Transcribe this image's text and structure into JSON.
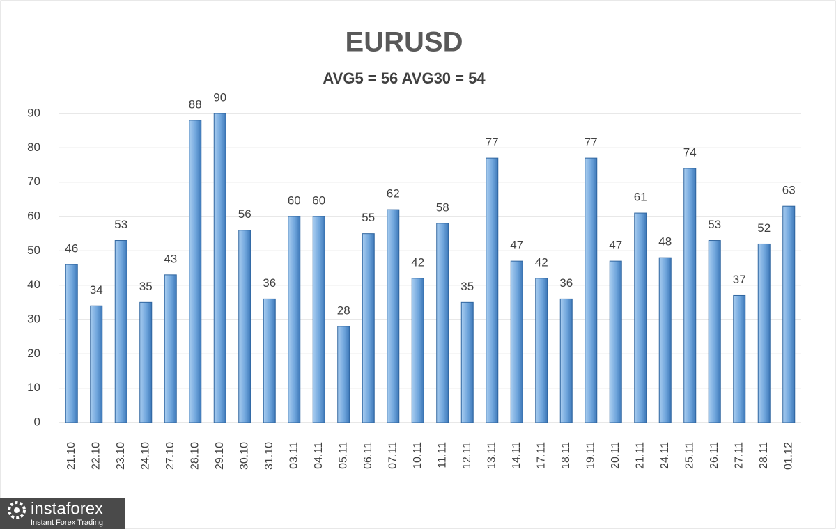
{
  "chart_data": {
    "type": "bar",
    "title": "EURUSD",
    "subtitle": "AVG5 = 56 AVG30 = 54",
    "categories": [
      "21.10",
      "22.10",
      "23.10",
      "24.10",
      "27.10",
      "28.10",
      "29.10",
      "30.10",
      "31.10",
      "03.11",
      "04.11",
      "05.11",
      "06.11",
      "07.11",
      "10.11",
      "11.11",
      "12.11",
      "13.11",
      "14.11",
      "17.11",
      "18.11",
      "19.11",
      "20.11",
      "21.11",
      "24.11",
      "25.11",
      "26.11",
      "27.11",
      "28.11",
      "01.12"
    ],
    "values": [
      46,
      34,
      53,
      35,
      43,
      88,
      90,
      56,
      36,
      60,
      60,
      28,
      55,
      62,
      42,
      58,
      35,
      77,
      47,
      42,
      36,
      77,
      47,
      61,
      48,
      74,
      53,
      37,
      52,
      63
    ],
    "color": "#5b9bd5",
    "ylim": [
      0,
      90
    ],
    "yticks": [
      0,
      10,
      20,
      30,
      40,
      50,
      60,
      70,
      80,
      90
    ],
    "grid": true
  },
  "logo": {
    "brand": "instaforex",
    "tagline": "Instant Forex Trading"
  }
}
